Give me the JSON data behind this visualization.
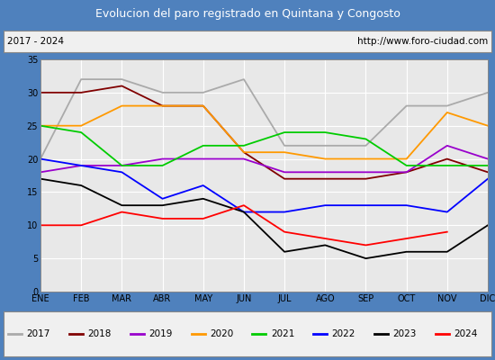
{
  "title": "Evolucion del paro registrado en Quintana y Congosto",
  "subtitle_left": "2017 - 2024",
  "subtitle_right": "http://www.foro-ciudad.com",
  "months": [
    "ENE",
    "FEB",
    "MAR",
    "ABR",
    "MAY",
    "JUN",
    "JUL",
    "AGO",
    "SEP",
    "OCT",
    "NOV",
    "DIC"
  ],
  "series": {
    "2017": [
      20,
      32,
      32,
      30,
      30,
      32,
      22,
      22,
      22,
      28,
      28,
      30
    ],
    "2018": [
      30,
      30,
      31,
      28,
      28,
      21,
      17,
      17,
      17,
      18,
      20,
      18
    ],
    "2019": [
      18,
      19,
      19,
      20,
      20,
      20,
      18,
      18,
      18,
      18,
      22,
      20
    ],
    "2020": [
      25,
      25,
      28,
      28,
      28,
      21,
      21,
      20,
      20,
      20,
      27,
      25
    ],
    "2021": [
      25,
      24,
      19,
      19,
      22,
      22,
      24,
      24,
      23,
      19,
      19,
      19
    ],
    "2022": [
      20,
      19,
      18,
      14,
      16,
      12,
      12,
      13,
      13,
      13,
      12,
      17
    ],
    "2023": [
      17,
      16,
      13,
      13,
      14,
      12,
      6,
      7,
      5,
      6,
      6,
      10
    ],
    "2024": [
      10,
      10,
      12,
      11,
      11,
      13,
      9,
      8,
      7,
      8,
      9,
      null
    ]
  },
  "colors": {
    "2017": "#aaaaaa",
    "2018": "#800000",
    "2019": "#9900cc",
    "2020": "#ff9900",
    "2021": "#00cc00",
    "2022": "#0000ff",
    "2023": "#000000",
    "2024": "#ff0000"
  },
  "ylim": [
    0,
    35
  ],
  "yticks": [
    0,
    5,
    10,
    15,
    20,
    25,
    30,
    35
  ],
  "title_bg": "#4f81bd",
  "title_color": "#ffffff",
  "plot_bg": "#e8e8e8",
  "grid_color": "#ffffff",
  "border_color": "#4f81bd",
  "fig_width": 5.5,
  "fig_height": 4.0,
  "dpi": 100
}
